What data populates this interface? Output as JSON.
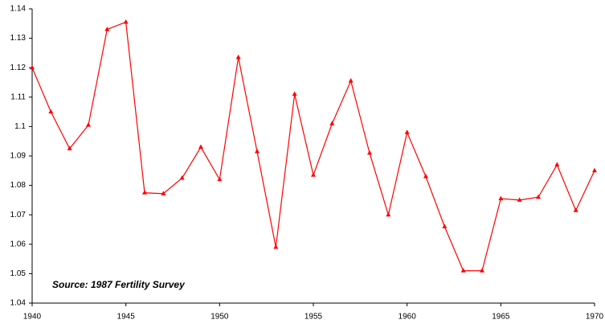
{
  "chart_data": {
    "type": "line",
    "annotation": "Source: 1987 Fertility Survey",
    "x": [
      1940,
      1941,
      1942,
      1943,
      1944,
      1945,
      1946,
      1947,
      1948,
      1949,
      1950,
      1951,
      1952,
      1953,
      1954,
      1955,
      1956,
      1957,
      1958,
      1959,
      1960,
      1961,
      1962,
      1963,
      1964,
      1965,
      1966,
      1967,
      1968,
      1969,
      1970
    ],
    "values": [
      1.12,
      1.105,
      1.0925,
      1.1005,
      1.133,
      1.1355,
      1.0775,
      1.0772,
      1.0825,
      1.093,
      1.082,
      1.1235,
      1.0915,
      1.059,
      1.111,
      1.0835,
      1.101,
      1.1155,
      1.091,
      1.07,
      1.098,
      1.083,
      1.066,
      1.051,
      1.051,
      1.0755,
      1.075,
      1.076,
      1.087,
      1.0715,
      1.085
    ],
    "color": "#ff0000",
    "xlim": [
      1940,
      1970
    ],
    "xticks": [
      1940,
      1945,
      1950,
      1955,
      1960,
      1965,
      1970
    ],
    "ylim": [
      1.04,
      1.14
    ],
    "yticks": [
      1.04,
      1.05,
      1.06,
      1.07,
      1.08,
      1.09,
      1.1,
      1.11,
      1.12,
      1.13,
      1.14
    ],
    "grid": false
  }
}
